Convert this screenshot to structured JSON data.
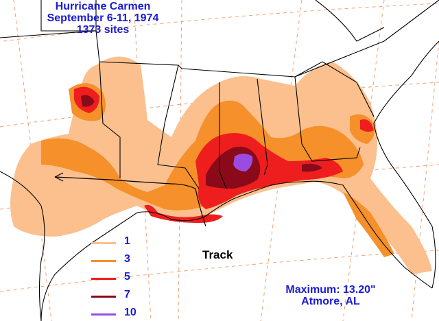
{
  "title": {
    "line1": "Hurricane Carmen",
    "line2": "September 6-11, 1974",
    "line3": "1373 sites"
  },
  "legend": {
    "items": [
      {
        "label": "1",
        "color": "#fbc08e"
      },
      {
        "label": "3",
        "color": "#f5902a"
      },
      {
        "label": "5",
        "color": "#ee1e1e"
      },
      {
        "label": "7",
        "color": "#8a0a1a"
      },
      {
        "label": "10",
        "color": "#9a4ce0"
      }
    ]
  },
  "track_label": "Track",
  "maximum": {
    "line1": "Maximum: 13.20\"",
    "line2": "Atmore, AL"
  },
  "colors": {
    "text_blue": "#1a1ad6",
    "grid": "#f0a070"
  }
}
